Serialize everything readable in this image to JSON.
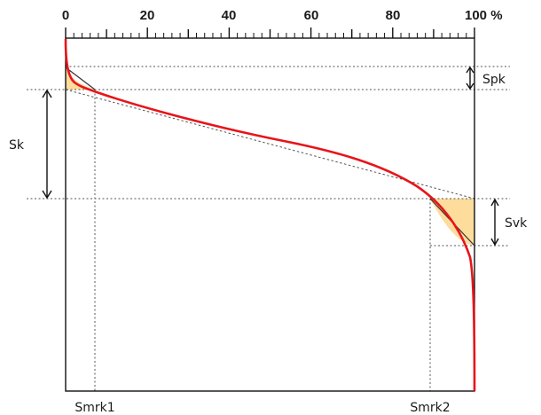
{
  "diagram": {
    "x_axis": {
      "ticks": [
        {
          "value": 0,
          "label": "0"
        },
        {
          "value": 20,
          "label": "20"
        },
        {
          "value": 40,
          "label": "40"
        },
        {
          "value": 60,
          "label": "60"
        },
        {
          "value": 80,
          "label": "80"
        },
        {
          "value": 100,
          "label": "100 %"
        }
      ]
    },
    "labels": {
      "spk": "Spk",
      "sk": "Sk",
      "svk": "Svk",
      "smrk1": "Smrk1",
      "smrk2": "Smrk2"
    },
    "colors": {
      "curve": "#e8141a",
      "area": "#fddc9c",
      "axis": "#111111"
    }
  }
}
